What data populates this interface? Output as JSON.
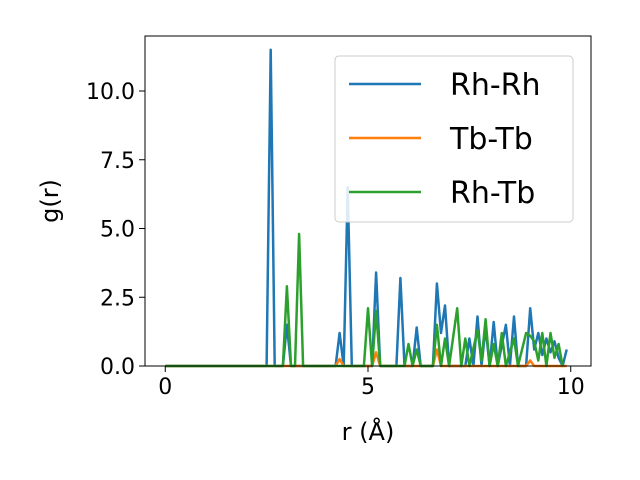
{
  "chart_data": {
    "type": "line",
    "title": "",
    "xlabel": "r (Å)",
    "ylabel": "g(r)",
    "xlim": [
      -0.5,
      10.5
    ],
    "ylim": [
      0,
      12.0
    ],
    "xticks": [
      0,
      5,
      10
    ],
    "xtick_labels": [
      "0",
      "5",
      "10"
    ],
    "yticks": [
      0.0,
      2.5,
      5.0,
      7.5,
      10.0
    ],
    "ytick_labels": [
      "0.0",
      "2.5",
      "5.0",
      "7.5",
      "10.0"
    ],
    "grid": false,
    "legend_position": "top-right",
    "series": [
      {
        "name": "Rh-Rh",
        "color": "#1f77b4",
        "points": [
          [
            0,
            0
          ],
          [
            2.5,
            0
          ],
          [
            2.6,
            11.5
          ],
          [
            2.7,
            0
          ],
          [
            2.9,
            0
          ],
          [
            3.0,
            1.5
          ],
          [
            3.1,
            0
          ],
          [
            4.2,
            0
          ],
          [
            4.3,
            1.2
          ],
          [
            4.4,
            0
          ],
          [
            4.5,
            6.5
          ],
          [
            4.6,
            0
          ],
          [
            5.1,
            0
          ],
          [
            5.2,
            3.4
          ],
          [
            5.3,
            0
          ],
          [
            5.7,
            0
          ],
          [
            5.8,
            3.2
          ],
          [
            5.9,
            0
          ],
          [
            6.1,
            0
          ],
          [
            6.2,
            1.4
          ],
          [
            6.3,
            0
          ],
          [
            6.6,
            0
          ],
          [
            6.7,
            3.0
          ],
          [
            6.8,
            1.2
          ],
          [
            6.9,
            2.2
          ],
          [
            7.0,
            0
          ],
          [
            7.4,
            0
          ],
          [
            7.5,
            1.0
          ],
          [
            7.6,
            0
          ],
          [
            7.7,
            1.8
          ],
          [
            7.8,
            0
          ],
          [
            7.9,
            1.4
          ],
          [
            8.0,
            0
          ],
          [
            8.1,
            1.6
          ],
          [
            8.2,
            0
          ],
          [
            8.4,
            1.5
          ],
          [
            8.5,
            0
          ],
          [
            8.6,
            1.8
          ],
          [
            8.7,
            0
          ],
          [
            8.9,
            0
          ],
          [
            9.0,
            2.1
          ],
          [
            9.1,
            0.6
          ],
          [
            9.2,
            1.2
          ],
          [
            9.3,
            0.4
          ],
          [
            9.4,
            1.0
          ],
          [
            9.5,
            0.5
          ],
          [
            9.6,
            0.9
          ],
          [
            9.7,
            0.3
          ],
          [
            9.8,
            0.0
          ],
          [
            9.9,
            0.6
          ]
        ]
      },
      {
        "name": "Tb-Tb",
        "color": "#ff7f0e",
        "points": [
          [
            0,
            0
          ],
          [
            4.2,
            0
          ],
          [
            4.3,
            0.25
          ],
          [
            4.4,
            0
          ],
          [
            5.1,
            0
          ],
          [
            5.2,
            0.5
          ],
          [
            5.3,
            0
          ],
          [
            6.6,
            0
          ],
          [
            6.7,
            0.6
          ],
          [
            6.8,
            0
          ],
          [
            8.9,
            0
          ],
          [
            9.0,
            0.2
          ],
          [
            9.1,
            0
          ],
          [
            9.9,
            0
          ]
        ]
      },
      {
        "name": "Rh-Tb",
        "color": "#2ca02c",
        "points": [
          [
            0,
            0
          ],
          [
            2.9,
            0
          ],
          [
            3.0,
            2.9
          ],
          [
            3.1,
            0
          ],
          [
            3.2,
            0
          ],
          [
            3.3,
            4.8
          ],
          [
            3.4,
            0
          ],
          [
            4.9,
            0
          ],
          [
            5.0,
            2.1
          ],
          [
            5.1,
            0
          ],
          [
            5.2,
            2.0
          ],
          [
            5.3,
            0
          ],
          [
            5.9,
            0
          ],
          [
            6.0,
            0.8
          ],
          [
            6.1,
            0
          ],
          [
            6.2,
            0.6
          ],
          [
            6.3,
            0
          ],
          [
            6.6,
            0
          ],
          [
            6.7,
            1.5
          ],
          [
            6.8,
            0
          ],
          [
            6.9,
            1.0
          ],
          [
            7.0,
            0
          ],
          [
            7.2,
            2.1
          ],
          [
            7.3,
            0
          ],
          [
            7.4,
            1.0
          ],
          [
            7.5,
            0
          ],
          [
            7.7,
            1.3
          ],
          [
            7.8,
            0.2
          ],
          [
            7.9,
            1.7
          ],
          [
            8.0,
            0
          ],
          [
            8.1,
            0.8
          ],
          [
            8.2,
            0
          ],
          [
            8.3,
            1.2
          ],
          [
            8.4,
            0
          ],
          [
            8.6,
            1.0
          ],
          [
            8.7,
            0
          ],
          [
            8.9,
            1.2
          ],
          [
            9.0,
            1.1
          ],
          [
            9.1,
            0.9
          ],
          [
            9.2,
            0.2
          ],
          [
            9.3,
            1.2
          ],
          [
            9.4,
            0
          ],
          [
            9.5,
            1.2
          ],
          [
            9.6,
            0.3
          ],
          [
            9.7,
            0.8
          ],
          [
            9.8,
            0
          ]
        ]
      }
    ]
  }
}
